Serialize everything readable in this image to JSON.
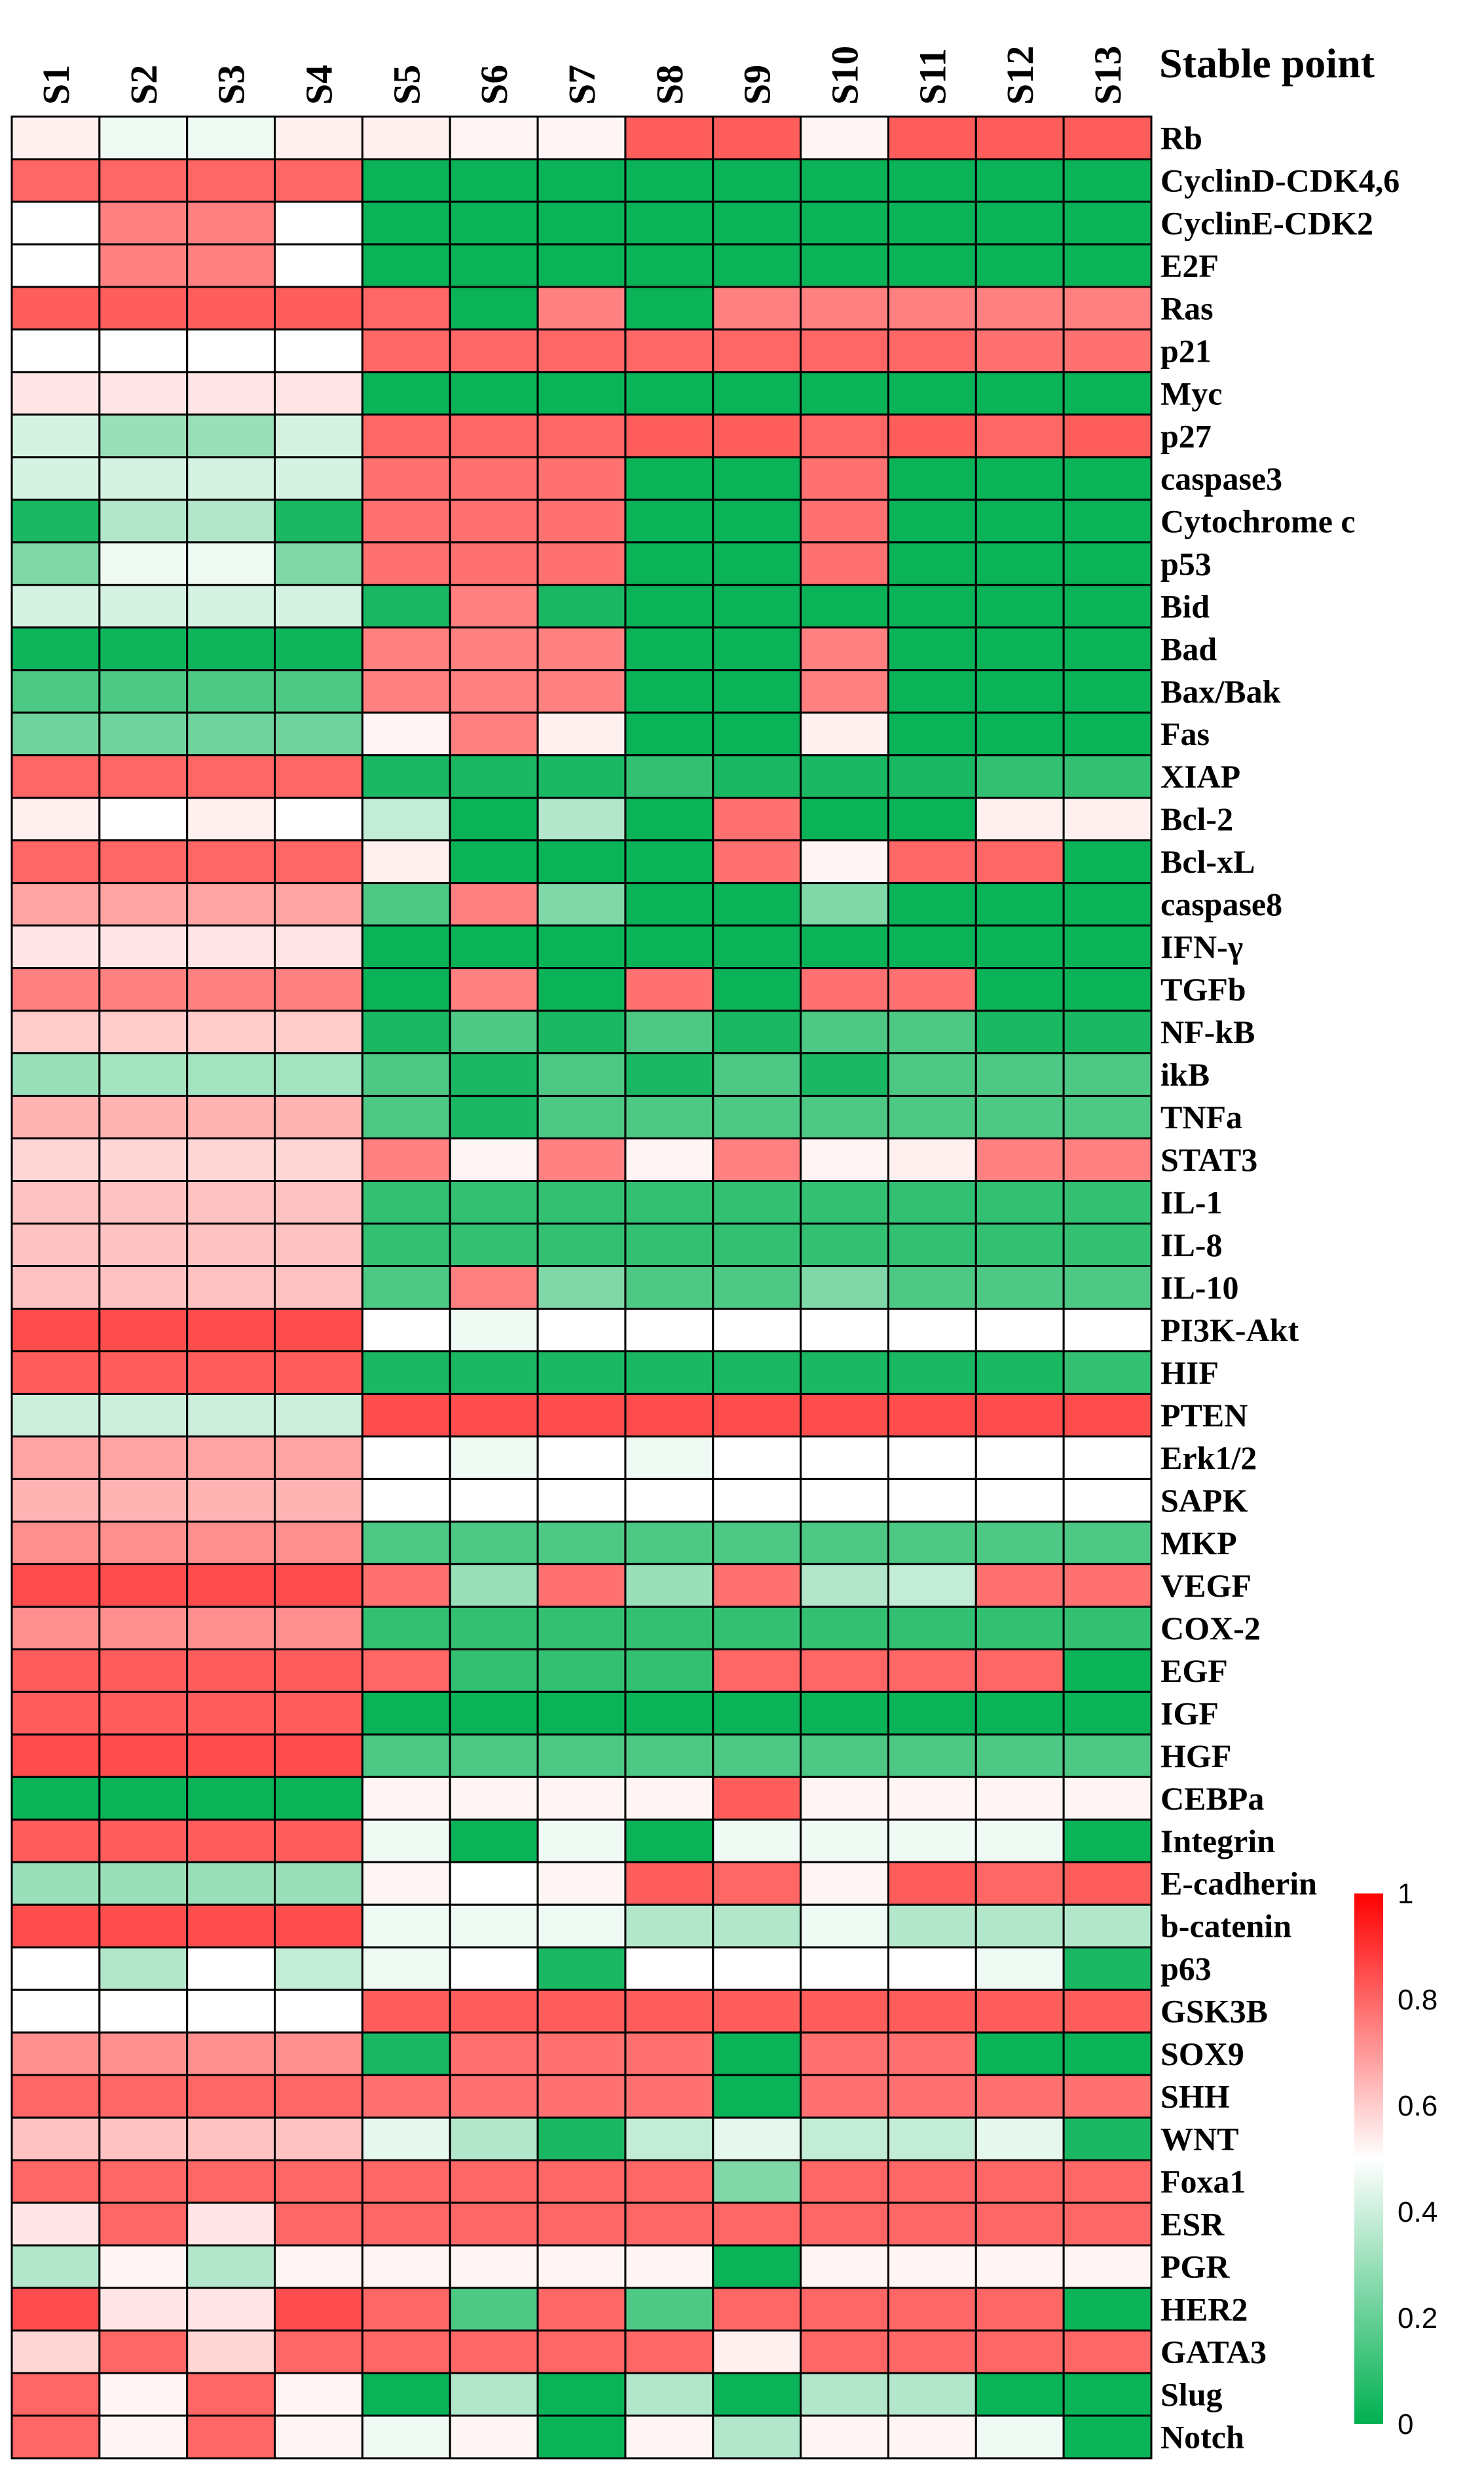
{
  "chart_data": {
    "type": "heatmap",
    "title": "",
    "corner_label": "Stable point",
    "columns": [
      "S1",
      "S2",
      "S3",
      "S4",
      "S5",
      "S6",
      "S7",
      "S8",
      "S9",
      "S10",
      "S11",
      "S12",
      "S13"
    ],
    "rows": [
      "Rb",
      "CyclinD-CDK4,6",
      "CyclinE-CDK2",
      "E2F",
      "Ras",
      "p21",
      "Myc",
      "p27",
      "caspase3",
      "Cytochrome c",
      "p53",
      "Bid",
      "Bad",
      "Bax/Bak",
      "Fas",
      "XIAP",
      "Bcl-2",
      "Bcl-xL",
      "caspase8",
      "IFN-γ",
      "TGFb",
      "NF-kB",
      "ikB",
      "TNFa",
      "STAT3",
      "IL-1",
      "IL-8",
      "IL-10",
      "PI3K-Akt",
      "HIF",
      "PTEN",
      "Erk1/2",
      "SAPK",
      "MKP",
      "VEGF",
      "COX-2",
      "EGF",
      "IGF",
      "HGF",
      "CEBPa",
      "Integrin",
      "E-cadherin",
      "b-catenin",
      "p63",
      "GSK3B",
      "SOX9",
      "SHH",
      "WNT",
      "Foxa1",
      "ESR",
      "PGR",
      "HER2",
      "GATA3",
      "Slug",
      "Notch"
    ],
    "values": [
      [
        0.53,
        0.47,
        0.47,
        0.53,
        0.53,
        0.52,
        0.52,
        0.82,
        0.82,
        0.52,
        0.82,
        0.82,
        0.82
      ],
      [
        0.8,
        0.8,
        0.8,
        0.8,
        0.02,
        0.02,
        0.02,
        0.02,
        0.02,
        0.02,
        0.02,
        0.02,
        0.02
      ],
      [
        0.5,
        0.75,
        0.75,
        0.5,
        0.02,
        0.02,
        0.02,
        0.02,
        0.02,
        0.02,
        0.02,
        0.02,
        0.02
      ],
      [
        0.5,
        0.75,
        0.75,
        0.5,
        0.02,
        0.02,
        0.02,
        0.02,
        0.02,
        0.02,
        0.02,
        0.02,
        0.02
      ],
      [
        0.82,
        0.82,
        0.82,
        0.82,
        0.8,
        0.02,
        0.75,
        0.02,
        0.75,
        0.75,
        0.75,
        0.75,
        0.75
      ],
      [
        0.5,
        0.5,
        0.5,
        0.5,
        0.8,
        0.8,
        0.8,
        0.8,
        0.8,
        0.8,
        0.8,
        0.78,
        0.78
      ],
      [
        0.55,
        0.55,
        0.55,
        0.55,
        0.02,
        0.02,
        0.02,
        0.02,
        0.02,
        0.02,
        0.02,
        0.02,
        0.02
      ],
      [
        0.42,
        0.3,
        0.3,
        0.42,
        0.8,
        0.8,
        0.8,
        0.82,
        0.82,
        0.8,
        0.82,
        0.8,
        0.82
      ],
      [
        0.42,
        0.42,
        0.42,
        0.42,
        0.78,
        0.78,
        0.78,
        0.02,
        0.02,
        0.78,
        0.02,
        0.02,
        0.02
      ],
      [
        0.05,
        0.35,
        0.35,
        0.05,
        0.78,
        0.78,
        0.78,
        0.02,
        0.02,
        0.78,
        0.02,
        0.02,
        0.02
      ],
      [
        0.25,
        0.47,
        0.47,
        0.25,
        0.78,
        0.78,
        0.78,
        0.02,
        0.02,
        0.78,
        0.02,
        0.02,
        0.02
      ],
      [
        0.42,
        0.42,
        0.42,
        0.42,
        0.05,
        0.75,
        0.05,
        0.02,
        0.02,
        0.02,
        0.02,
        0.02,
        0.02
      ],
      [
        0.03,
        0.03,
        0.03,
        0.03,
        0.75,
        0.75,
        0.75,
        0.02,
        0.02,
        0.75,
        0.02,
        0.02,
        0.02
      ],
      [
        0.15,
        0.15,
        0.15,
        0.15,
        0.75,
        0.75,
        0.75,
        0.02,
        0.02,
        0.75,
        0.02,
        0.02,
        0.02
      ],
      [
        0.22,
        0.22,
        0.22,
        0.22,
        0.52,
        0.75,
        0.53,
        0.02,
        0.02,
        0.53,
        0.02,
        0.02,
        0.02
      ],
      [
        0.8,
        0.8,
        0.8,
        0.8,
        0.05,
        0.05,
        0.05,
        0.1,
        0.05,
        0.05,
        0.05,
        0.1,
        0.1
      ],
      [
        0.53,
        0.5,
        0.53,
        0.5,
        0.38,
        0.02,
        0.35,
        0.02,
        0.78,
        0.02,
        0.02,
        0.53,
        0.53
      ],
      [
        0.8,
        0.8,
        0.8,
        0.8,
        0.53,
        0.02,
        0.02,
        0.02,
        0.78,
        0.52,
        0.8,
        0.8,
        0.02
      ],
      [
        0.68,
        0.68,
        0.68,
        0.68,
        0.15,
        0.75,
        0.25,
        0.02,
        0.02,
        0.25,
        0.02,
        0.02,
        0.02
      ],
      [
        0.55,
        0.55,
        0.55,
        0.55,
        0.02,
        0.02,
        0.02,
        0.02,
        0.02,
        0.02,
        0.02,
        0.02,
        0.02
      ],
      [
        0.75,
        0.75,
        0.75,
        0.75,
        0.02,
        0.75,
        0.02,
        0.78,
        0.02,
        0.78,
        0.78,
        0.02,
        0.02
      ],
      [
        0.6,
        0.6,
        0.6,
        0.6,
        0.05,
        0.15,
        0.05,
        0.15,
        0.05,
        0.15,
        0.15,
        0.05,
        0.05
      ],
      [
        0.3,
        0.32,
        0.32,
        0.32,
        0.15,
        0.05,
        0.15,
        0.05,
        0.15,
        0.05,
        0.15,
        0.15,
        0.15
      ],
      [
        0.65,
        0.65,
        0.65,
        0.65,
        0.15,
        0.05,
        0.15,
        0.15,
        0.15,
        0.15,
        0.15,
        0.15,
        0.15
      ],
      [
        0.58,
        0.58,
        0.58,
        0.58,
        0.75,
        0.52,
        0.75,
        0.52,
        0.75,
        0.52,
        0.53,
        0.75,
        0.75
      ],
      [
        0.62,
        0.62,
        0.62,
        0.62,
        0.1,
        0.1,
        0.1,
        0.1,
        0.1,
        0.1,
        0.1,
        0.1,
        0.1
      ],
      [
        0.62,
        0.62,
        0.62,
        0.62,
        0.1,
        0.1,
        0.1,
        0.1,
        0.1,
        0.1,
        0.1,
        0.1,
        0.1
      ],
      [
        0.62,
        0.62,
        0.62,
        0.62,
        0.15,
        0.75,
        0.25,
        0.15,
        0.15,
        0.25,
        0.15,
        0.15,
        0.15
      ],
      [
        0.85,
        0.85,
        0.85,
        0.85,
        0.5,
        0.47,
        0.5,
        0.5,
        0.5,
        0.5,
        0.5,
        0.5,
        0.5
      ],
      [
        0.82,
        0.82,
        0.82,
        0.82,
        0.05,
        0.05,
        0.05,
        0.05,
        0.05,
        0.05,
        0.05,
        0.05,
        0.1
      ],
      [
        0.4,
        0.4,
        0.4,
        0.4,
        0.85,
        0.85,
        0.85,
        0.85,
        0.85,
        0.85,
        0.85,
        0.85,
        0.85
      ],
      [
        0.68,
        0.68,
        0.68,
        0.68,
        0.5,
        0.47,
        0.5,
        0.47,
        0.5,
        0.5,
        0.5,
        0.5,
        0.5
      ],
      [
        0.65,
        0.65,
        0.65,
        0.65,
        0.5,
        0.5,
        0.5,
        0.5,
        0.5,
        0.5,
        0.5,
        0.5,
        0.5
      ],
      [
        0.72,
        0.72,
        0.72,
        0.72,
        0.15,
        0.15,
        0.15,
        0.15,
        0.15,
        0.15,
        0.15,
        0.15,
        0.15
      ],
      [
        0.85,
        0.85,
        0.85,
        0.85,
        0.78,
        0.3,
        0.78,
        0.3,
        0.78,
        0.35,
        0.38,
        0.78,
        0.78
      ],
      [
        0.72,
        0.72,
        0.72,
        0.72,
        0.1,
        0.1,
        0.1,
        0.1,
        0.1,
        0.1,
        0.1,
        0.1,
        0.1
      ],
      [
        0.82,
        0.82,
        0.82,
        0.82,
        0.8,
        0.1,
        0.1,
        0.1,
        0.8,
        0.8,
        0.8,
        0.8,
        0.02
      ],
      [
        0.82,
        0.82,
        0.82,
        0.82,
        0.02,
        0.02,
        0.02,
        0.02,
        0.02,
        0.02,
        0.02,
        0.02,
        0.02
      ],
      [
        0.85,
        0.85,
        0.85,
        0.85,
        0.15,
        0.15,
        0.15,
        0.15,
        0.15,
        0.15,
        0.15,
        0.15,
        0.15
      ],
      [
        0.02,
        0.02,
        0.02,
        0.02,
        0.52,
        0.52,
        0.52,
        0.52,
        0.82,
        0.52,
        0.52,
        0.52,
        0.52
      ],
      [
        0.82,
        0.82,
        0.82,
        0.82,
        0.47,
        0.02,
        0.47,
        0.02,
        0.47,
        0.47,
        0.47,
        0.47,
        0.02
      ],
      [
        0.3,
        0.3,
        0.3,
        0.3,
        0.52,
        0.5,
        0.52,
        0.82,
        0.8,
        0.52,
        0.82,
        0.8,
        0.82
      ],
      [
        0.85,
        0.85,
        0.85,
        0.85,
        0.47,
        0.47,
        0.47,
        0.35,
        0.35,
        0.47,
        0.35,
        0.35,
        0.35
      ],
      [
        0.5,
        0.35,
        0.5,
        0.38,
        0.47,
        0.5,
        0.05,
        0.5,
        0.5,
        0.5,
        0.5,
        0.47,
        0.05
      ],
      [
        0.5,
        0.5,
        0.5,
        0.5,
        0.82,
        0.82,
        0.82,
        0.82,
        0.82,
        0.82,
        0.82,
        0.82,
        0.82
      ],
      [
        0.72,
        0.72,
        0.72,
        0.72,
        0.05,
        0.78,
        0.78,
        0.78,
        0.02,
        0.78,
        0.78,
        0.02,
        0.02
      ],
      [
        0.8,
        0.8,
        0.8,
        0.8,
        0.78,
        0.78,
        0.78,
        0.78,
        0.02,
        0.78,
        0.78,
        0.78,
        0.78
      ],
      [
        0.62,
        0.62,
        0.62,
        0.62,
        0.45,
        0.35,
        0.05,
        0.38,
        0.45,
        0.38,
        0.38,
        0.45,
        0.05
      ],
      [
        0.8,
        0.8,
        0.8,
        0.8,
        0.8,
        0.8,
        0.8,
        0.8,
        0.25,
        0.8,
        0.8,
        0.8,
        0.8
      ],
      [
        0.55,
        0.8,
        0.55,
        0.8,
        0.8,
        0.8,
        0.8,
        0.8,
        0.8,
        0.8,
        0.8,
        0.8,
        0.8
      ],
      [
        0.35,
        0.52,
        0.35,
        0.52,
        0.52,
        0.52,
        0.52,
        0.52,
        0.02,
        0.52,
        0.52,
        0.52,
        0.52
      ],
      [
        0.85,
        0.55,
        0.55,
        0.85,
        0.8,
        0.15,
        0.8,
        0.15,
        0.8,
        0.8,
        0.8,
        0.8,
        0.02
      ],
      [
        0.58,
        0.8,
        0.58,
        0.8,
        0.8,
        0.8,
        0.8,
        0.8,
        0.53,
        0.8,
        0.8,
        0.8,
        0.8
      ],
      [
        0.8,
        0.52,
        0.8,
        0.52,
        0.02,
        0.35,
        0.02,
        0.35,
        0.02,
        0.35,
        0.35,
        0.02,
        0.02
      ],
      [
        0.8,
        0.52,
        0.8,
        0.52,
        0.47,
        0.52,
        0.02,
        0.52,
        0.35,
        0.52,
        0.52,
        0.47,
        0.02
      ]
    ],
    "colorbar": {
      "range": [
        0,
        1
      ],
      "ticks": [
        "0",
        "0.2",
        "0.4",
        "0.6",
        "0.8",
        "1"
      ],
      "colors": [
        "#00b050",
        "#ffffff",
        "#ff0000"
      ]
    }
  }
}
